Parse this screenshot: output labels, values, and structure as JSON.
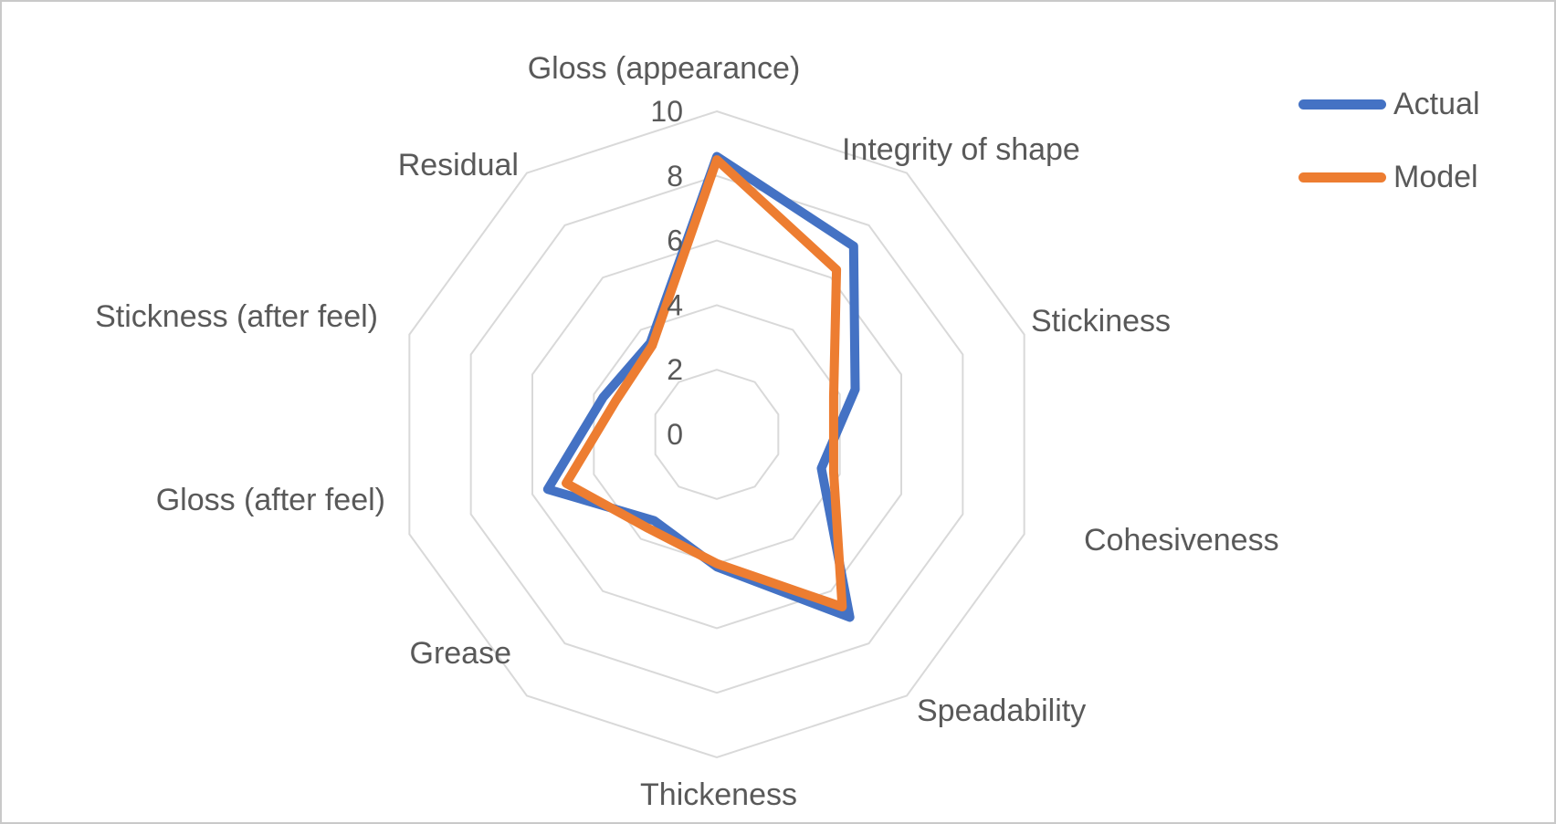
{
  "chart_data": {
    "type": "radar",
    "title": "",
    "categories": [
      "Gloss (appearance)",
      "Integrity of shape",
      "Stickiness",
      "Cohesiveness",
      "Speadability",
      "Thickeness",
      "Grease",
      "Gloss (after feel)",
      "Stickness (after feel)",
      "Residual"
    ],
    "series": [
      {
        "name": "Actual",
        "color": "#4472C4",
        "values": [
          8.6,
          7.2,
          4.5,
          3.4,
          7.0,
          4.1,
          3.3,
          5.5,
          3.7,
          3.5
        ]
      },
      {
        "name": "Model",
        "color": "#ED7D31",
        "values": [
          8.5,
          6.3,
          3.8,
          3.8,
          6.6,
          4.0,
          3.6,
          4.9,
          3.3,
          3.4
        ]
      }
    ],
    "axis": {
      "min": 0,
      "max": 10,
      "tick_interval": 2,
      "tick_labels": [
        "0",
        "2",
        "4",
        "6",
        "8",
        "10"
      ],
      "gridline_values": [
        2,
        4,
        6,
        8,
        10
      ],
      "grid": true,
      "radial_spokes": false,
      "gridline_color": "#D9D9D9"
    },
    "legend": {
      "position": "top-right",
      "entries": [
        "Actual",
        "Model"
      ]
    },
    "text_color": "#595959"
  }
}
